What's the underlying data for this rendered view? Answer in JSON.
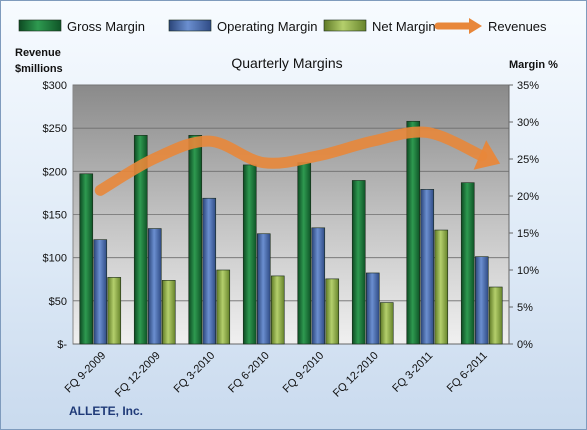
{
  "chart_data": {
    "type": "bar",
    "title": "Quarterly Margins",
    "company": "ALLETE,  Inc.",
    "left_axis_title_line1": "Revenue",
    "left_axis_title_line2": "$millions",
    "right_axis_title": "Margin %",
    "categories": [
      "FQ 9-2009",
      "FQ 12-2009",
      "FQ 3-2010",
      "FQ 6-2010",
      "FQ 9-2010",
      "FQ 12-2010",
      "FQ 3-2011",
      "FQ 6-2011"
    ],
    "left_axis": {
      "min": 0,
      "max": 300,
      "ticks": [
        0,
        50,
        100,
        150,
        200,
        250,
        300
      ],
      "tick_labels": [
        "$-",
        "$50",
        "$100",
        "$150",
        "$200",
        "$250",
        "$300"
      ]
    },
    "right_axis": {
      "min": 0,
      "max": 35,
      "ticks": [
        0,
        5,
        10,
        15,
        20,
        25,
        30,
        35
      ],
      "tick_labels": [
        "0%",
        "5%",
        "10%",
        "15%",
        "20%",
        "25%",
        "30%",
        "35%"
      ]
    },
    "grid": true,
    "legend_position": "top",
    "series": [
      {
        "name": "Gross Margin",
        "axis": "right",
        "color": "#1e7a3c",
        "values": [
          23.0,
          28.2,
          28.2,
          24.2,
          24.5,
          22.1,
          30.1,
          21.8
        ]
      },
      {
        "name": "Operating Margin",
        "axis": "right",
        "color": "#4a6fb5",
        "values": [
          14.1,
          15.6,
          19.7,
          14.9,
          15.7,
          9.6,
          20.9,
          11.8
        ]
      },
      {
        "name": "Net Margin",
        "axis": "right",
        "color": "#8fb04a",
        "values": [
          9.0,
          8.6,
          10.0,
          9.2,
          8.8,
          5.6,
          15.4,
          7.7
        ]
      },
      {
        "name": "Revenues",
        "axis": "left",
        "type": "line-arrow",
        "color": "#e8873a",
        "values": [
          178,
          215,
          235,
          210,
          218,
          235,
          245,
          218
        ]
      }
    ]
  }
}
